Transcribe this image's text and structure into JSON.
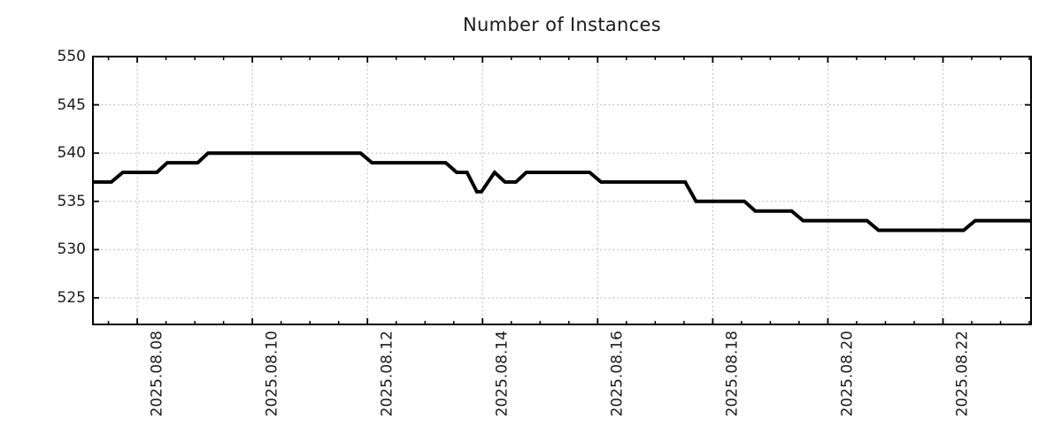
{
  "page": {
    "title": "Number of Instances"
  },
  "chart_data": {
    "type": "line",
    "title": "Number of Instances",
    "xlabel": "",
    "ylabel": "",
    "legend": "none",
    "grid": true,
    "x_unit": "days since 2025-08-07 00:00 (estimated from axis)",
    "xlim": [
      0.23,
      16.53
    ],
    "ylim": [
      522.25,
      550
    ],
    "yticks": [
      525,
      530,
      535,
      540,
      545,
      550
    ],
    "xticks": [
      {
        "day": 1,
        "label": "2025.08.08"
      },
      {
        "day": 3,
        "label": "2025.08.10"
      },
      {
        "day": 5,
        "label": "2025.08.12"
      },
      {
        "day": 7,
        "label": "2025.08.14"
      },
      {
        "day": 9,
        "label": "2025.08.16"
      },
      {
        "day": 11,
        "label": "2025.08.18"
      },
      {
        "day": 13,
        "label": "2025.08.20"
      },
      {
        "day": 15,
        "label": "2025.08.22"
      }
    ],
    "x_minor_tick_step": 0.5,
    "series": [
      {
        "name": "instances",
        "color": "#000000",
        "line_width": 4,
        "points": [
          [
            0.23,
            537
          ],
          [
            0.55,
            537
          ],
          [
            0.75,
            538
          ],
          [
            1.34,
            538
          ],
          [
            1.52,
            539
          ],
          [
            2.05,
            539
          ],
          [
            2.23,
            540
          ],
          [
            4.88,
            540
          ],
          [
            5.08,
            539
          ],
          [
            6.36,
            539
          ],
          [
            6.55,
            538
          ],
          [
            6.73,
            538
          ],
          [
            6.9,
            536
          ],
          [
            6.98,
            536
          ],
          [
            7.21,
            538
          ],
          [
            7.39,
            537
          ],
          [
            7.58,
            537
          ],
          [
            7.76,
            538
          ],
          [
            8.86,
            538
          ],
          [
            9.06,
            537
          ],
          [
            10.52,
            537
          ],
          [
            10.71,
            535
          ],
          [
            11.55,
            535
          ],
          [
            11.74,
            534
          ],
          [
            12.37,
            534
          ],
          [
            12.57,
            533
          ],
          [
            13.68,
            533
          ],
          [
            13.88,
            532
          ],
          [
            15.36,
            532
          ],
          [
            15.56,
            533
          ],
          [
            16.53,
            533
          ]
        ]
      }
    ]
  },
  "style": {
    "background": "#ffffff",
    "text_color": "#1a1a1a",
    "frame_color": "#000000",
    "grid_color": "#a9a9a9",
    "line_color": "#000000"
  }
}
